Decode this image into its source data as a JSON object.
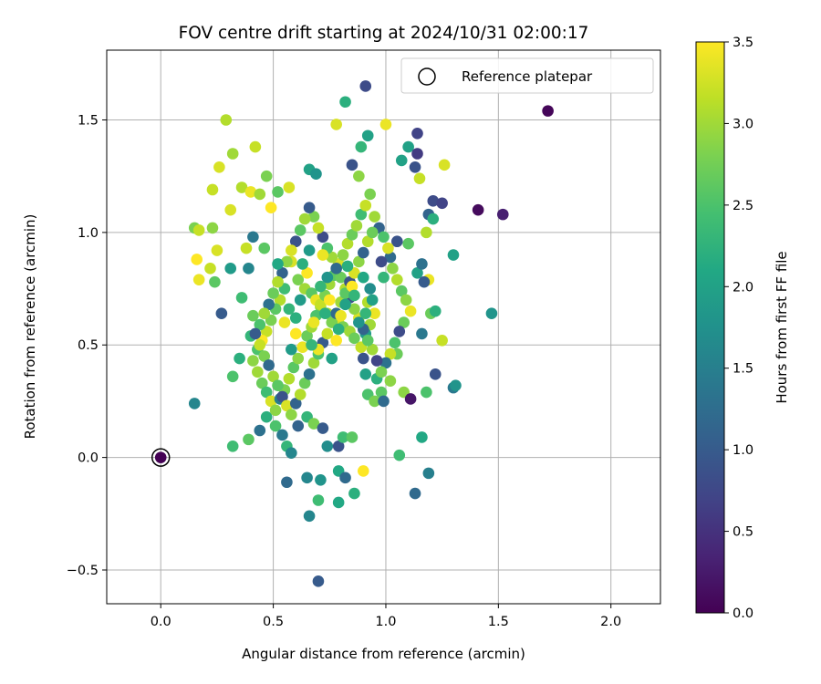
{
  "chart_data": {
    "type": "scatter",
    "title": "FOV centre drift starting at 2024/10/31 02:00:17",
    "xlabel": "Angular distance from reference (arcmin)",
    "ylabel": "Rotation from reference (arcmin)",
    "xlim": [
      -0.24,
      2.22
    ],
    "ylim": [
      -0.65,
      1.81
    ],
    "xticks": [
      0.0,
      0.5,
      1.0,
      1.5,
      2.0
    ],
    "xtick_labels": [
      "0.0",
      "0.5",
      "1.0",
      "1.5",
      "2.0"
    ],
    "yticks": [
      -0.5,
      0.0,
      0.5,
      1.0,
      1.5
    ],
    "ytick_labels": [
      "−0.5",
      "0.0",
      "0.5",
      "1.0",
      "1.5"
    ],
    "grid": true,
    "legend": {
      "placement": "top-right",
      "entries": [
        "Reference platepar"
      ]
    },
    "reference_point": {
      "x": 0.0,
      "y": 0.0,
      "c": 0.0
    },
    "colorbar": {
      "label": "Hours from first FF file",
      "colormap": "viridis",
      "range": [
        0.0,
        3.5
      ],
      "ticks": [
        0.0,
        0.5,
        1.0,
        1.5,
        2.0,
        2.5,
        3.0,
        3.5
      ],
      "tick_labels": [
        "0.0",
        "0.5",
        "1.0",
        "1.5",
        "2.0",
        "2.5",
        "3.0",
        "3.5"
      ]
    },
    "points": [
      [
        1.72,
        1.54,
        0.05
      ],
      [
        1.41,
        1.1,
        0.1
      ],
      [
        1.52,
        1.08,
        0.3
      ],
      [
        0.91,
        1.65,
        0.8
      ],
      [
        1.14,
        1.44,
        0.7
      ],
      [
        0.82,
        1.58,
        2.2
      ],
      [
        0.29,
        1.5,
        3.1
      ],
      [
        0.42,
        1.38,
        3.2
      ],
      [
        0.78,
        1.48,
        3.3
      ],
      [
        1.0,
        1.48,
        3.4
      ],
      [
        0.23,
        1.19,
        3.2
      ],
      [
        0.26,
        1.29,
        3.3
      ],
      [
        0.32,
        1.35,
        3.0
      ],
      [
        0.47,
        1.25,
        2.8
      ],
      [
        0.66,
        1.28,
        2.0
      ],
      [
        0.69,
        1.26,
        1.8
      ],
      [
        0.85,
        1.3,
        0.9
      ],
      [
        0.88,
        1.25,
        2.9
      ],
      [
        0.89,
        1.38,
        2.3
      ],
      [
        0.92,
        1.43,
        2.0
      ],
      [
        1.07,
        1.32,
        2.0
      ],
      [
        1.1,
        1.38,
        2.0
      ],
      [
        1.13,
        1.29,
        0.9
      ],
      [
        1.14,
        1.35,
        0.6
      ],
      [
        1.26,
        1.3,
        3.3
      ],
      [
        1.15,
        1.24,
        3.2
      ],
      [
        1.21,
        1.14,
        0.8
      ],
      [
        1.25,
        1.13,
        0.7
      ],
      [
        1.19,
        1.08,
        1.1
      ],
      [
        1.21,
        1.06,
        2.2
      ],
      [
        0.15,
        1.02,
        2.8
      ],
      [
        0.17,
        1.01,
        3.2
      ],
      [
        0.23,
        1.02,
        2.9
      ],
      [
        0.16,
        0.88,
        3.5
      ],
      [
        0.17,
        0.79,
        3.4
      ],
      [
        0.22,
        0.84,
        3.2
      ],
      [
        0.25,
        0.92,
        3.3
      ],
      [
        0.31,
        1.1,
        3.3
      ],
      [
        0.36,
        1.2,
        3.1
      ],
      [
        0.4,
        1.18,
        3.4
      ],
      [
        0.44,
        1.17,
        3.0
      ],
      [
        0.49,
        1.11,
        3.5
      ],
      [
        0.52,
        1.18,
        2.6
      ],
      [
        0.57,
        1.2,
        3.3
      ],
      [
        0.38,
        0.93,
        3.2
      ],
      [
        0.46,
        0.93,
        2.6
      ],
      [
        0.41,
        0.98,
        1.4
      ],
      [
        0.39,
        0.84,
        1.6
      ],
      [
        0.31,
        0.84,
        1.9
      ],
      [
        0.24,
        0.78,
        2.6
      ],
      [
        0.36,
        0.71,
        2.4
      ],
      [
        0.41,
        0.63,
        2.7
      ],
      [
        0.4,
        0.54,
        2.3
      ],
      [
        0.35,
        0.44,
        2.2
      ],
      [
        0.32,
        0.36,
        2.5
      ],
      [
        0.27,
        0.64,
        1.0
      ],
      [
        0.15,
        0.24,
        1.6
      ],
      [
        0.32,
        0.05,
        2.4
      ],
      [
        0.39,
        0.08,
        2.6
      ],
      [
        0.44,
        0.12,
        1.3
      ],
      [
        0.47,
        0.18,
        2.2
      ],
      [
        0.51,
        0.14,
        2.5
      ],
      [
        0.54,
        0.1,
        1.4
      ],
      [
        0.56,
        0.05,
        2.3
      ],
      [
        0.58,
        0.02,
        1.6
      ],
      [
        0.61,
        0.14,
        1.1
      ],
      [
        0.65,
        0.18,
        2.3
      ],
      [
        0.68,
        0.15,
        2.8
      ],
      [
        0.72,
        0.13,
        1.0
      ],
      [
        0.74,
        0.05,
        1.7
      ],
      [
        0.79,
        0.05,
        0.9
      ],
      [
        0.81,
        0.09,
        2.4
      ],
      [
        0.85,
        0.09,
        2.6
      ],
      [
        0.9,
        -0.06,
        3.5
      ],
      [
        0.79,
        -0.06,
        2.1
      ],
      [
        0.56,
        -0.11,
        1.2
      ],
      [
        0.65,
        -0.09,
        1.6
      ],
      [
        0.71,
        -0.1,
        1.8
      ],
      [
        0.82,
        -0.09,
        1.2
      ],
      [
        0.86,
        -0.16,
        2.2
      ],
      [
        0.79,
        -0.2,
        2.1
      ],
      [
        0.7,
        -0.19,
        2.4
      ],
      [
        0.66,
        -0.26,
        1.6
      ],
      [
        0.7,
        -0.55,
        1.0
      ],
      [
        1.13,
        -0.16,
        1.2
      ],
      [
        1.19,
        -0.07,
        1.5
      ],
      [
        1.16,
        0.09,
        2.1
      ],
      [
        1.06,
        0.01,
        2.4
      ],
      [
        1.08,
        0.29,
        2.9
      ],
      [
        1.11,
        0.26,
        0.2
      ],
      [
        1.22,
        0.37,
        0.9
      ],
      [
        1.3,
        0.31,
        1.4
      ],
      [
        1.31,
        0.32,
        1.8
      ],
      [
        1.18,
        0.29,
        2.5
      ],
      [
        1.16,
        0.55,
        1.4
      ],
      [
        1.2,
        0.64,
        2.7
      ],
      [
        1.22,
        0.65,
        2.2
      ],
      [
        1.25,
        0.52,
        3.2
      ],
      [
        1.3,
        0.9,
        2.0
      ],
      [
        1.47,
        0.64,
        1.8
      ],
      [
        1.19,
        0.79,
        3.4
      ],
      [
        1.14,
        0.82,
        2.0
      ],
      [
        1.16,
        0.86,
        1.3
      ],
      [
        1.17,
        0.78,
        1.0
      ],
      [
        1.18,
        1.0,
        3.1
      ],
      [
        1.1,
        0.95,
        2.6
      ],
      [
        1.05,
        0.96,
        0.9
      ],
      [
        1.02,
        0.89,
        1.2
      ],
      [
        0.98,
        0.87,
        0.8
      ],
      [
        0.99,
        0.8,
        2.3
      ],
      [
        0.93,
        0.75,
        1.7
      ],
      [
        0.92,
        0.69,
        3.1
      ],
      [
        0.95,
        0.64,
        3.4
      ],
      [
        0.93,
        0.59,
        3.0
      ],
      [
        0.91,
        0.55,
        1.9
      ],
      [
        0.89,
        0.49,
        3.2
      ],
      [
        0.9,
        0.44,
        0.9
      ],
      [
        0.91,
        0.37,
        2.0
      ],
      [
        0.92,
        0.28,
        2.5
      ],
      [
        0.95,
        0.25,
        2.8
      ],
      [
        0.96,
        0.35,
        2.2
      ],
      [
        0.98,
        0.29,
        2.6
      ],
      [
        0.99,
        0.25,
        1.2
      ],
      [
        1.02,
        0.34,
        2.9
      ],
      [
        1.05,
        0.46,
        2.7
      ],
      [
        0.58,
        0.87,
        3.3
      ],
      [
        0.61,
        0.79,
        2.8
      ],
      [
        0.64,
        0.75,
        3.0
      ],
      [
        0.67,
        0.73,
        2.6
      ],
      [
        0.69,
        0.7,
        3.4
      ],
      [
        0.71,
        0.67,
        2.9
      ],
      [
        0.74,
        0.64,
        3.1
      ],
      [
        0.77,
        0.62,
        2.5
      ],
      [
        0.79,
        0.6,
        3.3
      ],
      [
        0.81,
        0.58,
        2.8
      ],
      [
        0.84,
        0.56,
        3.0
      ],
      [
        0.86,
        0.53,
        2.7
      ],
      [
        0.55,
        0.75,
        2.4
      ],
      [
        0.53,
        0.7,
        3.1
      ],
      [
        0.51,
        0.66,
        2.6
      ],
      [
        0.49,
        0.61,
        2.8
      ],
      [
        0.47,
        0.56,
        3.2
      ],
      [
        0.45,
        0.52,
        3.5
      ],
      [
        0.43,
        0.48,
        2.5
      ],
      [
        0.41,
        0.43,
        2.9
      ],
      [
        0.43,
        0.38,
        3.0
      ],
      [
        0.45,
        0.33,
        2.7
      ],
      [
        0.47,
        0.29,
        2.4
      ],
      [
        0.49,
        0.25,
        3.3
      ],
      [
        0.51,
        0.21,
        2.9
      ],
      [
        0.53,
        0.26,
        1.5
      ],
      [
        0.55,
        0.3,
        2.8
      ],
      [
        0.57,
        0.35,
        3.1
      ],
      [
        0.59,
        0.4,
        2.6
      ],
      [
        0.61,
        0.44,
        2.9
      ],
      [
        0.63,
        0.49,
        3.4
      ],
      [
        0.65,
        0.54,
        2.7
      ],
      [
        0.67,
        0.58,
        3.0
      ],
      [
        0.69,
        0.63,
        2.5
      ],
      [
        0.71,
        0.68,
        3.2
      ],
      [
        0.73,
        0.72,
        2.8
      ],
      [
        0.75,
        0.77,
        3.0
      ],
      [
        0.77,
        0.81,
        2.6
      ],
      [
        0.79,
        0.86,
        3.3
      ],
      [
        0.81,
        0.9,
        2.9
      ],
      [
        0.83,
        0.95,
        3.1
      ],
      [
        0.85,
        0.99,
        2.7
      ],
      [
        0.87,
        1.03,
        3.0
      ],
      [
        0.89,
        1.08,
        2.4
      ],
      [
        0.91,
        1.12,
        3.2
      ],
      [
        0.93,
        1.17,
        2.8
      ],
      [
        0.95,
        1.07,
        3.0
      ],
      [
        0.97,
        1.02,
        1.1
      ],
      [
        0.99,
        0.98,
        2.5
      ],
      [
        1.01,
        0.93,
        3.3
      ],
      [
        1.03,
        0.84,
        2.9
      ],
      [
        1.05,
        0.79,
        3.1
      ],
      [
        1.07,
        0.74,
        2.6
      ],
      [
        1.09,
        0.7,
        2.9
      ],
      [
        1.11,
        0.65,
        3.4
      ],
      [
        1.08,
        0.6,
        2.7
      ],
      [
        1.06,
        0.56,
        0.8
      ],
      [
        1.04,
        0.51,
        2.5
      ],
      [
        1.02,
        0.46,
        3.2
      ],
      [
        1.0,
        0.42,
        1.3
      ],
      [
        0.98,
        0.38,
        2.8
      ],
      [
        0.96,
        0.43,
        0.7
      ],
      [
        0.94,
        0.48,
        3.0
      ],
      [
        0.92,
        0.52,
        2.6
      ],
      [
        0.9,
        0.57,
        1.1
      ],
      [
        0.88,
        0.62,
        3.3
      ],
      [
        0.86,
        0.66,
        2.9
      ],
      [
        0.84,
        0.71,
        0.9
      ],
      [
        0.82,
        0.75,
        3.1
      ],
      [
        0.8,
        0.8,
        2.7
      ],
      [
        0.78,
        0.84,
        1.2
      ],
      [
        0.76,
        0.89,
        3.0
      ],
      [
        0.74,
        0.93,
        2.5
      ],
      [
        0.72,
        0.98,
        0.8
      ],
      [
        0.7,
        1.02,
        3.2
      ],
      [
        0.68,
        1.07,
        2.8
      ],
      [
        0.66,
        1.11,
        1.0
      ],
      [
        0.64,
        1.06,
        3.0
      ],
      [
        0.62,
        1.01,
        2.6
      ],
      [
        0.6,
        0.96,
        0.9
      ],
      [
        0.58,
        0.92,
        3.3
      ],
      [
        0.56,
        0.87,
        2.9
      ],
      [
        0.54,
        0.82,
        1.1
      ],
      [
        0.52,
        0.78,
        3.1
      ],
      [
        0.5,
        0.73,
        2.7
      ],
      [
        0.48,
        0.68,
        1.3
      ],
      [
        0.46,
        0.64,
        3.0
      ],
      [
        0.44,
        0.59,
        2.5
      ],
      [
        0.42,
        0.55,
        1.0
      ],
      [
        0.44,
        0.5,
        3.2
      ],
      [
        0.46,
        0.45,
        2.8
      ],
      [
        0.48,
        0.41,
        1.2
      ],
      [
        0.5,
        0.36,
        3.0
      ],
      [
        0.52,
        0.32,
        2.6
      ],
      [
        0.54,
        0.27,
        0.9
      ],
      [
        0.56,
        0.23,
        3.3
      ],
      [
        0.58,
        0.19,
        2.9
      ],
      [
        0.6,
        0.24,
        1.1
      ],
      [
        0.62,
        0.28,
        3.1
      ],
      [
        0.64,
        0.33,
        2.7
      ],
      [
        0.66,
        0.37,
        1.3
      ],
      [
        0.68,
        0.42,
        3.0
      ],
      [
        0.7,
        0.46,
        2.5
      ],
      [
        0.72,
        0.51,
        1.0
      ],
      [
        0.74,
        0.55,
        3.2
      ],
      [
        0.76,
        0.6,
        2.8
      ],
      [
        0.78,
        0.64,
        1.2
      ],
      [
        0.8,
        0.69,
        3.0
      ],
      [
        0.82,
        0.73,
        2.6
      ],
      [
        0.84,
        0.78,
        0.9
      ],
      [
        0.86,
        0.82,
        3.3
      ],
      [
        0.88,
        0.87,
        2.9
      ],
      [
        0.9,
        0.91,
        1.1
      ],
      [
        0.92,
        0.96,
        3.1
      ],
      [
        0.94,
        1.0,
        2.7
      ],
      [
        0.6,
        0.55,
        3.5
      ],
      [
        0.7,
        0.48,
        3.4
      ],
      [
        0.75,
        0.7,
        3.5
      ],
      [
        0.8,
        0.63,
        3.4
      ],
      [
        0.65,
        0.82,
        3.5
      ],
      [
        0.72,
        0.9,
        3.4
      ],
      [
        0.85,
        0.76,
        3.5
      ],
      [
        0.55,
        0.6,
        3.4
      ],
      [
        0.78,
        0.52,
        3.5
      ],
      [
        0.68,
        0.6,
        3.4
      ],
      [
        0.62,
        0.7,
        1.9
      ],
      [
        0.74,
        0.8,
        1.8
      ],
      [
        0.82,
        0.68,
        2.0
      ],
      [
        0.58,
        0.48,
        1.9
      ],
      [
        0.9,
        0.8,
        2.1
      ],
      [
        0.66,
        0.92,
        1.9
      ],
      [
        0.76,
        0.44,
        2.0
      ],
      [
        0.52,
        0.86,
        2.1
      ],
      [
        0.88,
        0.6,
        1.8
      ],
      [
        0.94,
        0.7,
        2.0
      ],
      [
        0.6,
        0.62,
        2.2
      ],
      [
        0.71,
        0.76,
        2.3
      ],
      [
        0.83,
        0.85,
        2.2
      ],
      [
        0.57,
        0.66,
        2.3
      ],
      [
        0.79,
        0.57,
        2.2
      ],
      [
        0.67,
        0.5,
        2.3
      ],
      [
        0.73,
        0.64,
        2.2
      ],
      [
        0.86,
        0.72,
        2.3
      ],
      [
        0.63,
        0.86,
        2.2
      ],
      [
        0.91,
        0.64,
        2.3
      ]
    ]
  }
}
